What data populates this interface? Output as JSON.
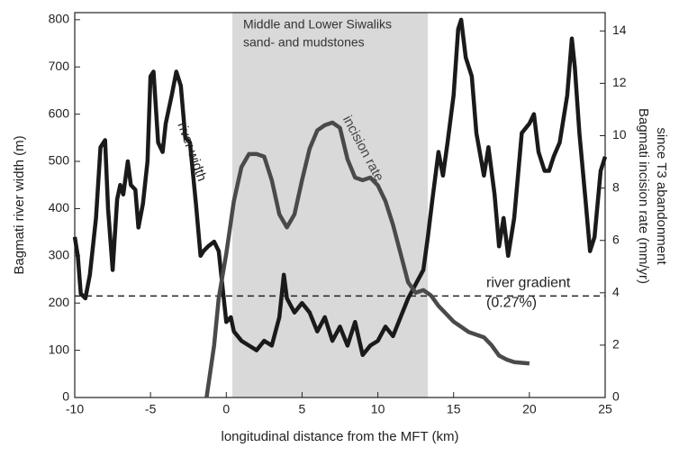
{
  "chart_data": {
    "type": "line",
    "xlabel": "longitudinal distance from the MFT (km)",
    "ylabel": "Bagmati river width (m)",
    "y2label": [
      "Bagmati incision rate (mm/yr)",
      "since T3 abandonment"
    ],
    "xlim": [
      -10,
      25
    ],
    "xticks": [
      -10,
      -5,
      0,
      5,
      10,
      15,
      20,
      25
    ],
    "ylim": [
      0,
      815
    ],
    "yticks": [
      0,
      100,
      200,
      300,
      400,
      500,
      600,
      700,
      800
    ],
    "y2lim": [
      0,
      14.7
    ],
    "y2ticks": [
      0,
      2,
      4,
      6,
      8,
      10,
      12,
      14
    ],
    "shaded_region": {
      "x": [
        0.4,
        13.3
      ],
      "color": "#d9d9d9",
      "label": [
        "Middle and Lower Siwaliks",
        "sand- and mudstones"
      ]
    },
    "reference_line": {
      "y": 215,
      "label": "river gradient",
      "sublabel": "(0.27%)"
    },
    "series": [
      {
        "name": "river width",
        "color": "#1a1a1a",
        "axis": "y",
        "x": [
          -10,
          -9.8,
          -9.6,
          -9.3,
          -9,
          -8.6,
          -8.3,
          -8,
          -7.8,
          -7.5,
          -7.2,
          -7,
          -6.8,
          -6.5,
          -6.3,
          -6,
          -5.8,
          -5.5,
          -5.2,
          -5,
          -4.8,
          -4.5,
          -4.2,
          -4,
          -3.6,
          -3.3,
          -3,
          -2.7,
          -2.4,
          -2,
          -1.7,
          -1.5,
          -1.2,
          -0.8,
          -0.5,
          -0.2,
          0,
          0.3,
          0.5,
          1,
          1.5,
          2,
          2.5,
          3,
          3.5,
          3.8,
          4,
          4.5,
          5,
          5.5,
          6,
          6.5,
          7,
          7.5,
          8,
          8.5,
          9,
          9.5,
          10,
          10.5,
          11,
          11.5,
          12,
          12.5,
          13,
          13.3,
          13.6,
          14,
          14.3,
          14.6,
          15,
          15.3,
          15.5,
          15.8,
          16.2,
          16.5,
          17,
          17.3,
          17.7,
          18,
          18.3,
          18.6,
          19,
          19.5,
          20,
          20.3,
          20.6,
          21,
          21.3,
          21.6,
          22,
          22.5,
          22.8,
          23,
          23.3,
          23.7,
          24,
          24.3,
          24.7,
          25
        ],
        "values": [
          340,
          300,
          220,
          210,
          260,
          380,
          530,
          545,
          400,
          270,
          420,
          450,
          430,
          500,
          450,
          440,
          360,
          410,
          500,
          680,
          690,
          540,
          520,
          580,
          640,
          690,
          660,
          550,
          540,
          410,
          300,
          310,
          320,
          330,
          310,
          220,
          160,
          170,
          140,
          120,
          110,
          100,
          120,
          110,
          170,
          260,
          210,
          180,
          200,
          180,
          140,
          170,
          120,
          150,
          110,
          160,
          90,
          110,
          120,
          150,
          130,
          170,
          210,
          240,
          270,
          340,
          420,
          520,
          470,
          540,
          640,
          780,
          800,
          720,
          680,
          560,
          470,
          530,
          430,
          320,
          380,
          300,
          380,
          560,
          580,
          600,
          520,
          480,
          480,
          510,
          540,
          640,
          760,
          700,
          560,
          420,
          310,
          340,
          480,
          510
        ]
      },
      {
        "name": "incision rate",
        "color": "#4a4a4a",
        "axis": "y2",
        "x": [
          -1.3,
          -0.8,
          -0.5,
          0,
          0.5,
          1,
          1.5,
          2,
          2.5,
          3,
          3.5,
          4,
          4.5,
          5,
          5.5,
          6,
          6.5,
          7,
          7.5,
          8,
          8.5,
          9,
          9.5,
          10,
          10.5,
          11,
          11.5,
          12,
          12.5,
          13,
          13.5,
          14,
          15,
          16,
          17,
          17.5,
          18,
          18.5,
          19,
          20
        ],
        "values": [
          0,
          2,
          3.8,
          5.5,
          7.5,
          8.8,
          9.3,
          9.3,
          9.2,
          8.3,
          7,
          6.5,
          7,
          8.3,
          9.5,
          10.2,
          10.4,
          10.5,
          10.3,
          9.1,
          8.4,
          8.3,
          8.4,
          8.1,
          7.5,
          6.6,
          5.5,
          4.4,
          4,
          4.1,
          3.9,
          3.5,
          2.9,
          2.5,
          2.3,
          2,
          1.6,
          1.45,
          1.35,
          1.3
        ]
      }
    ]
  }
}
